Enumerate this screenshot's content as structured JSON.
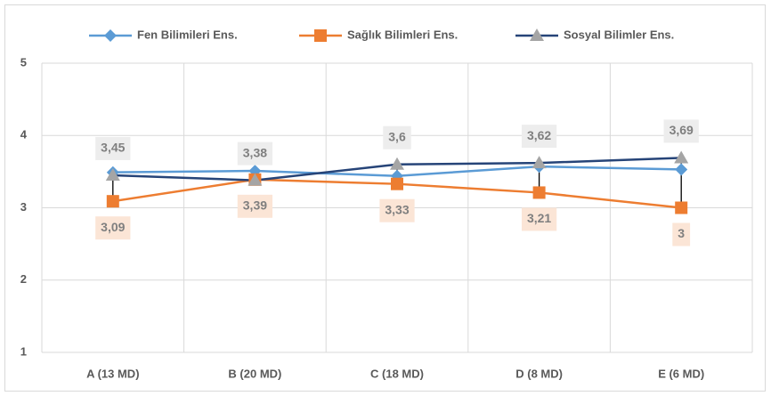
{
  "chart_data": {
    "type": "line",
    "categories": [
      "A (13 MD)",
      "B (20 MD)",
      "C (18 MD)",
      "D (8 MD)",
      "E (6 MD)"
    ],
    "series": [
      {
        "name": "Fen Bilimileri Ens.",
        "color": "#5B9BD5",
        "marker": "diamond",
        "values": [
          3.49,
          3.51,
          3.44,
          3.57,
          3.53
        ]
      },
      {
        "name": "Sağlık Bilimleri Ens.",
        "color": "#ED7D31",
        "marker": "square",
        "values": [
          3.09,
          3.39,
          3.33,
          3.21,
          3
        ],
        "value_labels": [
          "3,09",
          "3,39",
          "3,33",
          "3,21",
          "3"
        ],
        "label_position": "below",
        "label_background": "#FBE5D6"
      },
      {
        "name": "Sosyal Bilimler Ens.",
        "color": "#264478",
        "marker_color": "#A5A5A5",
        "marker": "triangle",
        "values": [
          3.45,
          3.38,
          3.6,
          3.62,
          3.69
        ],
        "value_labels": [
          "3,45",
          "3,38",
          "3,6",
          "3,62",
          "3,69"
        ],
        "label_position": "above",
        "label_background": "#EDEDED"
      }
    ],
    "ylim": [
      1,
      5
    ],
    "yticks": [
      1,
      2,
      3,
      4,
      5
    ],
    "grid": true,
    "hilo_lines": true,
    "legend": "top"
  }
}
